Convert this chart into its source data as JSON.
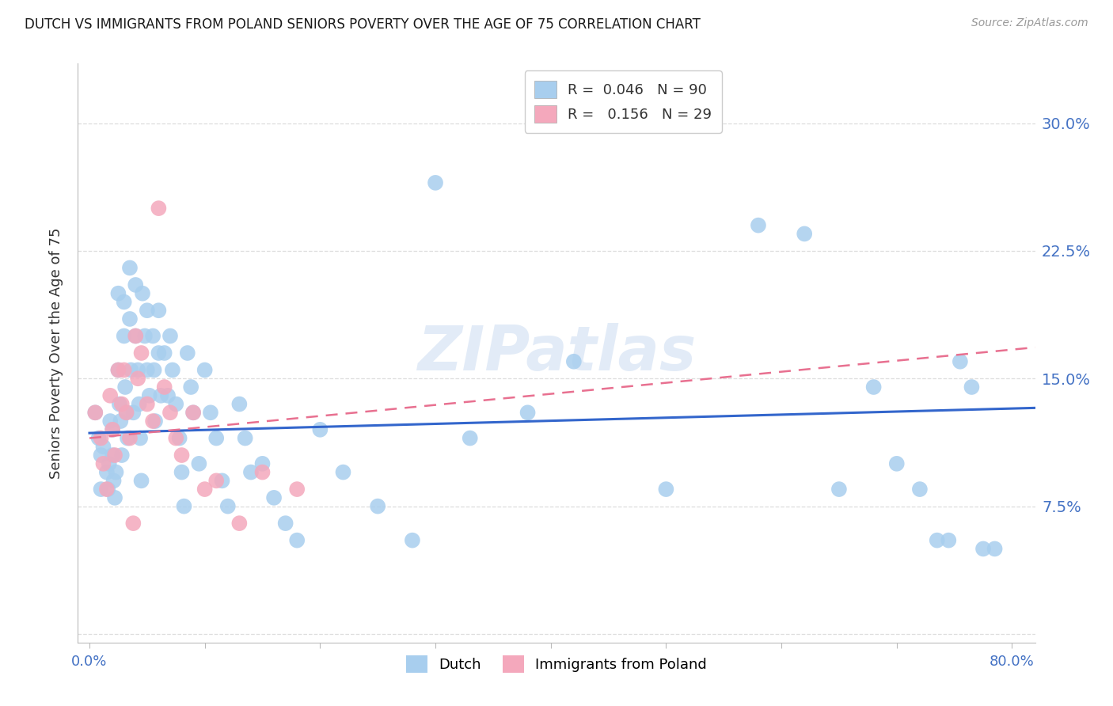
{
  "title": "DUTCH VS IMMIGRANTS FROM POLAND SENIORS POVERTY OVER THE AGE OF 75 CORRELATION CHART",
  "source": "Source: ZipAtlas.com",
  "ylabel": "Seniors Poverty Over the Age of 75",
  "ytick_values": [
    0.0,
    0.075,
    0.15,
    0.225,
    0.3
  ],
  "ytick_labels": [
    "",
    "7.5%",
    "15.0%",
    "22.5%",
    "30.0%"
  ],
  "xtick_values": [
    0.0,
    0.1,
    0.2,
    0.3,
    0.4,
    0.5,
    0.6,
    0.7,
    0.8
  ],
  "xtick_labels": [
    "0.0%",
    "",
    "",
    "",
    "",
    "",
    "",
    "",
    "80.0%"
  ],
  "xlim": [
    -0.01,
    0.82
  ],
  "ylim": [
    -0.005,
    0.335
  ],
  "dutch_R": 0.046,
  "dutch_N": 90,
  "poland_R": 0.156,
  "poland_N": 29,
  "dutch_color": "#A8CEEE",
  "poland_color": "#F4A8BC",
  "trend_dutch_color": "#3366CC",
  "trend_poland_color": "#E87090",
  "dutch_x": [
    0.005,
    0.008,
    0.01,
    0.01,
    0.012,
    0.015,
    0.016,
    0.017,
    0.018,
    0.02,
    0.02,
    0.021,
    0.022,
    0.023,
    0.025,
    0.025,
    0.026,
    0.027,
    0.028,
    0.03,
    0.03,
    0.031,
    0.032,
    0.033,
    0.035,
    0.035,
    0.036,
    0.038,
    0.04,
    0.04,
    0.042,
    0.043,
    0.044,
    0.045,
    0.046,
    0.048,
    0.05,
    0.05,
    0.052,
    0.055,
    0.056,
    0.057,
    0.06,
    0.06,
    0.062,
    0.065,
    0.068,
    0.07,
    0.072,
    0.075,
    0.078,
    0.08,
    0.082,
    0.085,
    0.088,
    0.09,
    0.095,
    0.1,
    0.105,
    0.11,
    0.115,
    0.12,
    0.13,
    0.135,
    0.14,
    0.15,
    0.16,
    0.17,
    0.18,
    0.2,
    0.22,
    0.25,
    0.28,
    0.3,
    0.33,
    0.38,
    0.42,
    0.5,
    0.58,
    0.62,
    0.65,
    0.68,
    0.7,
    0.72,
    0.735,
    0.745,
    0.755,
    0.765,
    0.775,
    0.785
  ],
  "dutch_y": [
    0.13,
    0.115,
    0.105,
    0.085,
    0.11,
    0.095,
    0.085,
    0.1,
    0.125,
    0.12,
    0.105,
    0.09,
    0.08,
    0.095,
    0.2,
    0.155,
    0.135,
    0.125,
    0.105,
    0.195,
    0.175,
    0.145,
    0.13,
    0.115,
    0.215,
    0.185,
    0.155,
    0.13,
    0.205,
    0.175,
    0.155,
    0.135,
    0.115,
    0.09,
    0.2,
    0.175,
    0.19,
    0.155,
    0.14,
    0.175,
    0.155,
    0.125,
    0.19,
    0.165,
    0.14,
    0.165,
    0.14,
    0.175,
    0.155,
    0.135,
    0.115,
    0.095,
    0.075,
    0.165,
    0.145,
    0.13,
    0.1,
    0.155,
    0.13,
    0.115,
    0.09,
    0.075,
    0.135,
    0.115,
    0.095,
    0.1,
    0.08,
    0.065,
    0.055,
    0.12,
    0.095,
    0.075,
    0.055,
    0.265,
    0.115,
    0.13,
    0.16,
    0.085,
    0.24,
    0.235,
    0.085,
    0.145,
    0.1,
    0.085,
    0.055,
    0.055,
    0.16,
    0.145,
    0.05,
    0.05
  ],
  "poland_x": [
    0.005,
    0.01,
    0.012,
    0.015,
    0.018,
    0.02,
    0.022,
    0.025,
    0.028,
    0.03,
    0.032,
    0.035,
    0.038,
    0.04,
    0.042,
    0.045,
    0.05,
    0.055,
    0.06,
    0.065,
    0.07,
    0.075,
    0.08,
    0.09,
    0.1,
    0.11,
    0.13,
    0.15,
    0.18
  ],
  "poland_y": [
    0.13,
    0.115,
    0.1,
    0.085,
    0.14,
    0.12,
    0.105,
    0.155,
    0.135,
    0.155,
    0.13,
    0.115,
    0.065,
    0.175,
    0.15,
    0.165,
    0.135,
    0.125,
    0.25,
    0.145,
    0.13,
    0.115,
    0.105,
    0.13,
    0.085,
    0.09,
    0.065,
    0.095,
    0.085
  ],
  "watermark": "ZIPatlas",
  "background_color": "#FFFFFF",
  "grid_color": "#DDDDDD"
}
